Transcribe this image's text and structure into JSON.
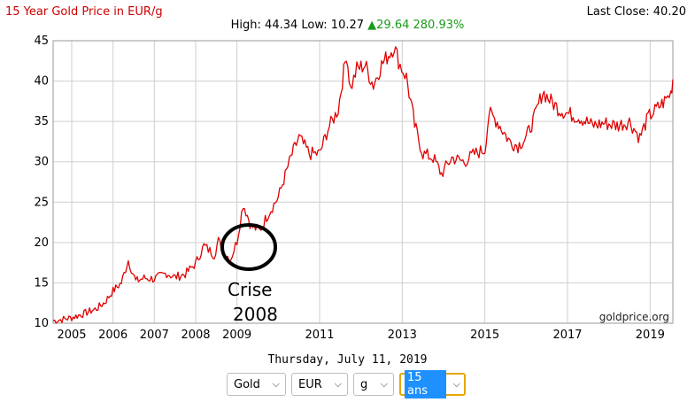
{
  "header": {
    "title": "15 Year Gold Price in EUR/g",
    "last_close": "Last Close: 40.20",
    "high_low": "High: 44.34  Low: 10.27",
    "change": "▲29.64 280.93%"
  },
  "date_label": "Thursday, July 11, 2019",
  "selectors": [
    {
      "value": "Gold",
      "active": false
    },
    {
      "value": "EUR",
      "active": false
    },
    {
      "value": "g",
      "active": false
    },
    {
      "value": "15 ans",
      "active": true
    }
  ],
  "annotation": {
    "line1": "Crise",
    "line2": "2008"
  },
  "watermark": "goldprice.org",
  "colors": {
    "series": "#e00000",
    "grid": "#cfcfcf",
    "title": "#cc0000",
    "change": "#1a9a1a",
    "active_select": "#1e90ff"
  },
  "chart_data": {
    "type": "line",
    "title": "15 Year Gold Price in EUR/g",
    "xlabel": "",
    "ylabel": "",
    "xlim": [
      2004.55,
      2019.55
    ],
    "ylim": [
      10,
      45
    ],
    "y_ticks": [
      10,
      15,
      20,
      25,
      30,
      35,
      40,
      45
    ],
    "x_ticks": [
      2005,
      2006,
      2007,
      2008,
      2009,
      2011,
      2013,
      2015,
      2017,
      2019
    ],
    "grid": true,
    "legend": "none",
    "series": [
      {
        "x": [
          2004.55,
          2004.8,
          2005.0,
          2005.3,
          2005.6,
          2005.8,
          2006.0,
          2006.2,
          2006.37,
          2006.55,
          2006.75,
          2007.0,
          2007.3,
          2007.5,
          2007.75,
          2008.0,
          2008.2,
          2008.45,
          2008.55,
          2008.7,
          2008.85,
          2009.0,
          2009.15,
          2009.35,
          2009.55,
          2009.75,
          2010.0,
          2010.3,
          2010.5,
          2010.75,
          2011.0,
          2011.2,
          2011.45,
          2011.65,
          2011.75,
          2011.9,
          2012.1,
          2012.3,
          2012.5,
          2012.7,
          2012.8,
          2012.95,
          2013.1,
          2013.3,
          2013.5,
          2013.75,
          2013.95,
          2014.2,
          2014.5,
          2014.75,
          2015.0,
          2015.1,
          2015.3,
          2015.6,
          2015.8,
          2016.0,
          2016.2,
          2016.4,
          2016.6,
          2016.8,
          2017.0,
          2017.3,
          2017.6,
          2017.9,
          2018.2,
          2018.5,
          2018.75,
          2018.95,
          2019.15,
          2019.35,
          2019.5,
          2019.55
        ],
        "y": [
          10.3,
          10.5,
          10.7,
          11.2,
          11.8,
          12.6,
          14.0,
          15.0,
          17.8,
          15.2,
          15.6,
          15.5,
          16.2,
          15.7,
          16.1,
          17.4,
          19.6,
          18.5,
          20.2,
          18.6,
          18.0,
          20.2,
          24.8,
          22.0,
          21.5,
          23.5,
          25.6,
          30.5,
          33.0,
          31.0,
          31.0,
          34.0,
          36.5,
          43.5,
          39.0,
          41.5,
          42.0,
          39.5,
          42.0,
          43.5,
          44.3,
          42.0,
          40.5,
          34.5,
          31.0,
          30.5,
          28.5,
          30.5,
          30.0,
          31.0,
          31.5,
          36.0,
          35.0,
          32.5,
          32.0,
          33.0,
          35.5,
          38.7,
          37.5,
          36.5,
          36.0,
          35.5,
          34.5,
          34.8,
          34.5,
          35.0,
          33.0,
          35.5,
          36.5,
          37.5,
          38.5,
          40.2
        ]
      }
    ]
  }
}
